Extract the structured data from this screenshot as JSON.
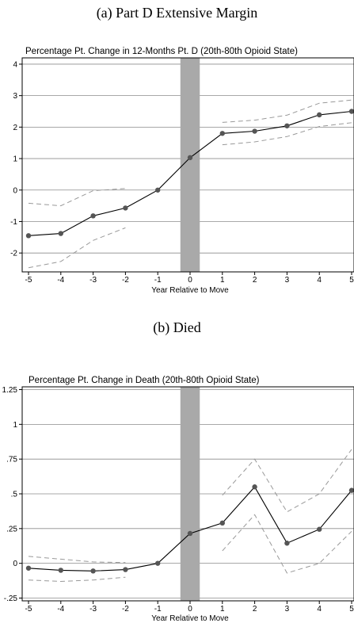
{
  "panels": [
    {
      "caption": "(a) Part D Extensive Margin",
      "title": "Percentage Pt. Change in 12-Months Pt. D (20th-80th Opioid State)",
      "xlabel": "Year Relative to Move"
    },
    {
      "caption": "(b) Died",
      "title": "Percentage Pt. Change in Death (20th-80th Opioid State)",
      "xlabel": "Year Relative to Move"
    }
  ],
  "chart_data": [
    {
      "type": "line",
      "title": "Percentage Pt. Change in 12-Months Pt. D (20th-80th Opioid State)",
      "xlabel": "Year Relative to Move",
      "ylabel": "",
      "x": [
        -5,
        -4,
        -3,
        -2,
        -1,
        0,
        1,
        2,
        3,
        4,
        5
      ],
      "xlim": [
        -5,
        5
      ],
      "ylim": [
        -2.6,
        4.2
      ],
      "yticks": [
        -2,
        -1,
        0,
        1,
        2,
        3,
        4
      ],
      "ytick_labels": [
        "-2",
        "-1",
        "0",
        "1",
        "2",
        "3",
        "4"
      ],
      "xtick_labels": [
        "-5",
        "-4",
        "-3",
        "-2",
        "-1",
        "0",
        "1",
        "2",
        "3",
        "4",
        "5"
      ],
      "grid": true,
      "shaded_band": {
        "x_from": -0.3,
        "x_to": 0.3,
        "color": "#a9a9a9"
      },
      "series": [
        {
          "role": "estimate",
          "color": "#000000",
          "marker_color": "#555555",
          "values": [
            -1.45,
            -1.38,
            -0.82,
            -0.57,
            0.0,
            1.03,
            1.8,
            1.87,
            2.04,
            2.39,
            2.5
          ]
        },
        {
          "role": "ci-upper",
          "color": "#999999",
          "dash": true,
          "values": [
            -0.42,
            -0.5,
            -0.02,
            0.05,
            null,
            null,
            2.15,
            2.22,
            2.38,
            2.76,
            2.86
          ]
        },
        {
          "role": "ci-lower",
          "color": "#999999",
          "dash": true,
          "values": [
            -2.47,
            -2.27,
            -1.6,
            -1.2,
            null,
            null,
            1.44,
            1.53,
            1.7,
            2.02,
            2.14
          ]
        }
      ]
    },
    {
      "type": "line",
      "title": "Percentage Pt. Change in Death (20th-80th Opioid State)",
      "xlabel": "Year Relative to Move",
      "ylabel": "",
      "x": [
        -5,
        -4,
        -3,
        -2,
        -1,
        0,
        1,
        2,
        3,
        4,
        5
      ],
      "xlim": [
        -5,
        5
      ],
      "ylim": [
        -0.27,
        1.27
      ],
      "yticks": [
        -0.25,
        0,
        0.25,
        0.5,
        0.75,
        1,
        1.25
      ],
      "ytick_labels": [
        "-.25",
        "0",
        ".25",
        ".5",
        ".75",
        "1",
        "1.25"
      ],
      "xtick_labels": [
        "-5",
        "-4",
        "-3",
        "-2",
        "-1",
        "0",
        "1",
        "2",
        "3",
        "4",
        "5"
      ],
      "grid": true,
      "shaded_band": {
        "x_from": -0.3,
        "x_to": 0.3,
        "color": "#a9a9a9"
      },
      "series": [
        {
          "role": "estimate",
          "color": "#000000",
          "marker_color": "#555555",
          "values": [
            -0.035,
            -0.05,
            -0.055,
            -0.045,
            0.0,
            0.215,
            0.29,
            0.55,
            0.145,
            0.245,
            0.525
          ]
        },
        {
          "role": "ci-upper",
          "color": "#999999",
          "dash": true,
          "values": [
            0.05,
            0.03,
            0.01,
            0.005,
            null,
            null,
            0.49,
            0.75,
            0.37,
            0.5,
            0.82
          ]
        },
        {
          "role": "ci-lower",
          "color": "#999999",
          "dash": true,
          "values": [
            -0.12,
            -0.13,
            -0.12,
            -0.1,
            null,
            null,
            0.09,
            0.35,
            -0.07,
            0.0,
            0.23
          ]
        }
      ]
    }
  ]
}
